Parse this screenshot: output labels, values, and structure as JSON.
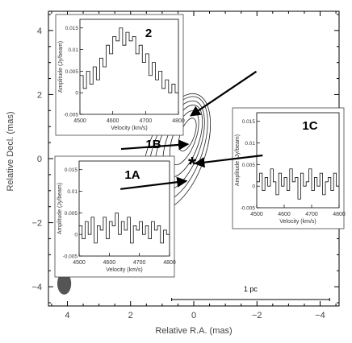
{
  "chart_data": [
    {
      "type": "contour",
      "xlabel": "Relative R.A. (mas)",
      "ylabel": "Relative Decl. (mas)",
      "xlim": [
        4.6,
        -4.6
      ],
      "ylim": [
        -4.6,
        4.6
      ],
      "x_ticks": [
        4,
        2,
        0,
        -2,
        -4
      ],
      "x_tick_labels": [
        "4",
        "2",
        "0",
        "−2",
        "−4"
      ],
      "y_ticks": [
        4,
        2,
        0,
        -2,
        -4
      ],
      "y_tick_labels": [
        "4",
        "2",
        "0",
        "−2",
        "−4"
      ],
      "contours": [
        {
          "cx": 0.55,
          "cy": 0.2,
          "rx": 0.9,
          "ry": 1.95
        },
        {
          "cx": 0.5,
          "cy": 0.3,
          "rx": 0.77,
          "ry": 1.75
        },
        {
          "cx": 0.45,
          "cy": 0.4,
          "rx": 0.64,
          "ry": 1.5
        },
        {
          "cx": 0.35,
          "cy": 0.55,
          "rx": 0.5,
          "ry": 1.2
        },
        {
          "cx": 0.3,
          "cy": 0.65,
          "rx": 0.36,
          "ry": 0.9
        },
        {
          "cx": 0.2,
          "cy": 0.75,
          "rx": 0.22,
          "ry": 0.55
        }
      ],
      "markers": [
        {
          "x": 0.05,
          "y": 0.0,
          "symbol": "*"
        }
      ],
      "beam": {
        "x": 4.1,
        "y": -3.9,
        "major": 0.35,
        "minor": 0.22
      },
      "scale_bar": {
        "label": "1 pc",
        "x_from": 0.7,
        "x_to": -4.3,
        "y": -4.4
      },
      "annotations": [
        {
          "label": "2",
          "tail": [
            -1.98,
            2.72
          ],
          "head": [
            0.08,
            1.35
          ]
        },
        {
          "label": "1B",
          "tail": [
            2.3,
            0.3
          ],
          "head": [
            0.2,
            0.45
          ]
        },
        {
          "label": "1C",
          "tail": [
            -2.18,
            0.1
          ],
          "head": [
            -0.06,
            -0.15
          ]
        },
        {
          "label": "1A",
          "tail": [
            2.32,
            -0.95
          ],
          "head": [
            0.25,
            -0.7
          ]
        }
      ]
    },
    {
      "type": "line",
      "panel": "2",
      "label": "2",
      "xlabel": "Velocity (km/s)",
      "ylabel": "Amplitude (Jy/beam)",
      "xlim": [
        4500,
        4800
      ],
      "ylim": [
        -0.005,
        0.017
      ],
      "x_ticks": [
        4500,
        4600,
        4700,
        4800
      ],
      "y_ticks": [
        -0.005,
        0,
        0.005,
        0.01,
        0.015
      ],
      "y_tick_labels": [
        "-0.005",
        "0",
        "0.005",
        "0.01",
        "0.015"
      ],
      "x": [
        4505,
        4515,
        4525,
        4535,
        4545,
        4555,
        4565,
        4575,
        4585,
        4595,
        4605,
        4615,
        4625,
        4635,
        4645,
        4655,
        4665,
        4675,
        4685,
        4695,
        4705,
        4715,
        4725,
        4735,
        4745,
        4755,
        4765,
        4775,
        4785,
        4795
      ],
      "y": [
        0.004,
        0.001,
        0.005,
        0.002,
        0.006,
        0.003,
        0.008,
        0.006,
        0.011,
        0.009,
        0.013,
        0.012,
        0.015,
        0.011,
        0.014,
        0.012,
        0.013,
        0.009,
        0.011,
        0.007,
        0.009,
        0.004,
        0.007,
        0.003,
        0.005,
        0.001,
        0.003,
        0.0,
        0.002,
        0.0
      ]
    },
    {
      "type": "line",
      "panel": "1A",
      "label": "1A",
      "xlabel": "Velocity (km/s)",
      "ylabel": "Amplitude (Jy/beam)",
      "xlim": [
        4500,
        4800
      ],
      "ylim": [
        -0.005,
        0.017
      ],
      "x_ticks": [
        4500,
        4600,
        4700,
        4800
      ],
      "y_ticks": [
        -0.005,
        0,
        0.005,
        0.01,
        0.015
      ],
      "y_tick_labels": [
        "-0.005",
        "0",
        "0.005",
        "0.01",
        "0.015"
      ],
      "x": [
        4505,
        4515,
        4525,
        4535,
        4545,
        4555,
        4565,
        4575,
        4585,
        4595,
        4605,
        4615,
        4625,
        4635,
        4645,
        4655,
        4665,
        4675,
        4685,
        4695,
        4705,
        4715,
        4725,
        4735,
        4745,
        4755,
        4765,
        4775,
        4785,
        4795
      ],
      "y": [
        0.002,
        -0.001,
        0.003,
        0.0,
        0.004,
        -0.002,
        0.002,
        0.001,
        0.004,
        -0.001,
        0.003,
        0.002,
        0.005,
        0.0,
        0.003,
        0.001,
        0.004,
        -0.002,
        0.002,
        0.001,
        0.003,
        0.0,
        0.002,
        -0.001,
        0.003,
        0.001,
        0.002,
        -0.002,
        0.001,
        0.0
      ]
    },
    {
      "type": "line",
      "panel": "1C",
      "label": "1C",
      "xlabel": "Velocity (km/s)",
      "ylabel": "Amplitude (Jy/beam)",
      "xlim": [
        4500,
        4800
      ],
      "ylim": [
        -0.005,
        0.017
      ],
      "x_ticks": [
        4500,
        4600,
        4700,
        4800
      ],
      "y_ticks": [
        -0.005,
        0,
        0.005,
        0.01,
        0.015
      ],
      "y_tick_labels": [
        "-0.005",
        "0",
        "0.005",
        "0.01",
        "0.015"
      ],
      "x": [
        4505,
        4515,
        4525,
        4535,
        4545,
        4555,
        4565,
        4575,
        4585,
        4595,
        4605,
        4615,
        4625,
        4635,
        4645,
        4655,
        4665,
        4675,
        4685,
        4695,
        4705,
        4715,
        4725,
        4735,
        4745,
        4755,
        4765,
        4775,
        4785,
        4795
      ],
      "y": [
        0.001,
        0.003,
        -0.001,
        0.002,
        0.0,
        0.004,
        0.001,
        -0.002,
        0.003,
        0.0,
        0.002,
        -0.001,
        0.004,
        0.001,
        0.002,
        -0.003,
        0.003,
        0.0,
        0.001,
        0.004,
        -0.001,
        0.002,
        0.0,
        0.003,
        -0.002,
        0.001,
        0.002,
        -0.001,
        0.003,
        0.0
      ]
    }
  ]
}
